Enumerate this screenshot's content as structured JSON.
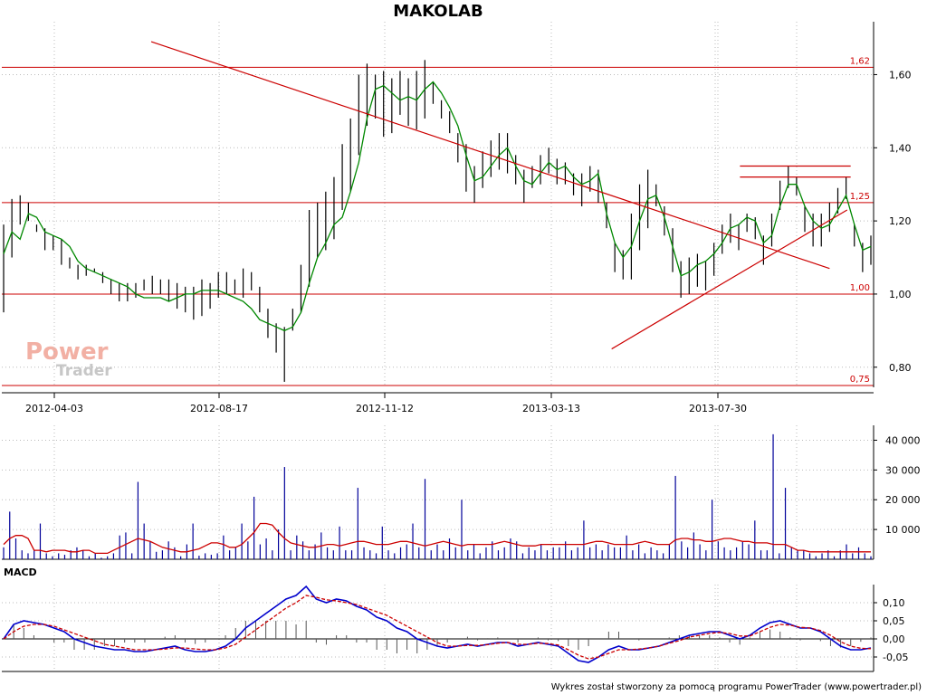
{
  "chart_data": [
    {
      "type": "candlestick",
      "title": "MAKOLAB",
      "x_tick_labels": [
        "2012-04-03",
        "2012-08-17",
        "2012-11-12",
        "2013-03-13",
        "2013-07-30"
      ],
      "y_ticks": [
        0.8,
        1.0,
        1.2,
        1.4,
        1.6
      ],
      "y_tick_labels": [
        "0,80",
        "1,00",
        "1,20",
        "1,40",
        "1,60"
      ],
      "ylim": [
        0.745,
        1.71
      ],
      "grid": true,
      "levels": [
        {
          "value": 1.62,
          "label": "1,62"
        },
        {
          "value": 1.25,
          "label": "1,25"
        },
        {
          "value": 1.0,
          "label": "1,00"
        },
        {
          "value": 0.75,
          "label": "0,75"
        }
      ],
      "trendlines": [
        {
          "from": [
            84,
            1.69
          ],
          "to": [
            470,
            1.07
          ]
        },
        {
          "from": [
            346,
            0.85
          ],
          "to": [
            480,
            1.23
          ]
        }
      ],
      "channel_lines": [
        {
          "from": [
            419,
            1.35
          ],
          "to": [
            482,
            1.35
          ]
        },
        {
          "from": [
            419,
            1.32
          ],
          "to": [
            482,
            1.32
          ]
        }
      ],
      "price_bars": {
        "lows": [
          0.95,
          1.1,
          1.19,
          1.2,
          1.17,
          1.12,
          1.12,
          1.08,
          1.07,
          1.04,
          1.05,
          1.06,
          1.03,
          1.0,
          0.98,
          0.98,
          0.99,
          1.01,
          1.0,
          1.0,
          0.98,
          0.96,
          0.95,
          0.93,
          0.94,
          0.96,
          0.99,
          1.0,
          1.0,
          0.99,
          1.01,
          0.95,
          0.88,
          0.84,
          0.76,
          0.9,
          0.95,
          1.02,
          1.1,
          1.12,
          1.15,
          1.23,
          1.28,
          1.38,
          1.46,
          1.48,
          1.43,
          1.44,
          1.49,
          1.46,
          1.45,
          1.48,
          1.52,
          1.48,
          1.44,
          1.36,
          1.28,
          1.25,
          1.29,
          1.32,
          1.34,
          1.33,
          1.3,
          1.25,
          1.29,
          1.3,
          1.33,
          1.3,
          1.3,
          1.27,
          1.24,
          1.28,
          1.25,
          1.18,
          1.06,
          1.04,
          1.04,
          1.12,
          1.18,
          1.24,
          1.16,
          1.06,
          0.99,
          1.0,
          1.02,
          1.01,
          1.05,
          1.11,
          1.14,
          1.12,
          1.17,
          1.15,
          1.08,
          1.13,
          1.23,
          1.29,
          1.27,
          1.17,
          1.13,
          1.13,
          1.17,
          1.22,
          1.26,
          1.13,
          1.06,
          1.08
        ],
        "highs": [
          1.19,
          1.26,
          1.27,
          1.25,
          1.19,
          1.18,
          1.16,
          1.15,
          1.1,
          1.08,
          1.08,
          1.07,
          1.06,
          1.04,
          1.03,
          1.03,
          1.03,
          1.04,
          1.05,
          1.04,
          1.04,
          1.03,
          1.02,
          1.02,
          1.04,
          1.03,
          1.06,
          1.06,
          1.04,
          1.07,
          1.06,
          1.02,
          0.96,
          0.92,
          0.91,
          0.96,
          1.08,
          1.23,
          1.25,
          1.28,
          1.32,
          1.41,
          1.48,
          1.6,
          1.63,
          1.6,
          1.61,
          1.59,
          1.61,
          1.59,
          1.61,
          1.64,
          1.58,
          1.53,
          1.5,
          1.44,
          1.41,
          1.35,
          1.39,
          1.42,
          1.44,
          1.44,
          1.38,
          1.34,
          1.35,
          1.38,
          1.4,
          1.37,
          1.36,
          1.33,
          1.33,
          1.35,
          1.34,
          1.25,
          1.14,
          1.12,
          1.22,
          1.3,
          1.34,
          1.3,
          1.24,
          1.18,
          1.09,
          1.1,
          1.11,
          1.09,
          1.14,
          1.19,
          1.22,
          1.19,
          1.22,
          1.21,
          1.16,
          1.22,
          1.31,
          1.35,
          1.32,
          1.24,
          1.22,
          1.22,
          1.25,
          1.29,
          1.32,
          1.19,
          1.14,
          1.16
        ]
      },
      "series": [
        {
          "values": [
            1.11,
            1.17,
            1.15,
            1.22,
            1.21,
            1.17,
            1.16,
            1.15,
            1.13,
            1.09,
            1.07,
            1.06,
            1.05,
            1.04,
            1.03,
            1.02,
            1.0,
            0.99,
            0.99,
            0.99,
            0.98,
            0.99,
            1.0,
            1.0,
            1.01,
            1.01,
            1.01,
            1.0,
            0.99,
            0.98,
            0.96,
            0.93,
            0.92,
            0.91,
            0.9,
            0.91,
            0.95,
            1.03,
            1.1,
            1.14,
            1.19,
            1.21,
            1.28,
            1.36,
            1.48,
            1.56,
            1.57,
            1.55,
            1.53,
            1.54,
            1.53,
            1.56,
            1.58,
            1.55,
            1.51,
            1.46,
            1.38,
            1.31,
            1.32,
            1.35,
            1.38,
            1.4,
            1.35,
            1.31,
            1.3,
            1.33,
            1.36,
            1.34,
            1.35,
            1.32,
            1.3,
            1.31,
            1.33,
            1.22,
            1.14,
            1.1,
            1.13,
            1.2,
            1.26,
            1.27,
            1.21,
            1.13,
            1.05,
            1.06,
            1.08,
            1.09,
            1.11,
            1.14,
            1.18,
            1.19,
            1.21,
            1.2,
            1.14,
            1.16,
            1.24,
            1.3,
            1.3,
            1.24,
            1.2,
            1.18,
            1.19,
            1.23,
            1.27,
            1.19,
            1.12,
            1.13
          ]
        }
      ]
    },
    {
      "type": "bar",
      "y_ticks": [
        10000,
        20000,
        30000,
        40000
      ],
      "y_tick_labels": [
        "10 000",
        "20 000",
        "30 000",
        "40 000"
      ],
      "ylim": [
        0,
        45000
      ],
      "grid": true,
      "series": [
        {
          "values": [
            4000,
            16000,
            7000,
            3000,
            2000,
            3000,
            12000,
            2000,
            1000,
            2000,
            1500,
            3000,
            4000,
            3000,
            1000,
            2000,
            500,
            1000,
            2000,
            8000,
            9000,
            2000,
            26000,
            12000,
            6000,
            2500,
            3000,
            6000,
            4000,
            1000,
            5000,
            12000,
            1200,
            2000,
            1500,
            2000,
            8000,
            3000,
            4000,
            12000,
            6000,
            21000,
            5000,
            7000,
            3000,
            10000,
            31000,
            3000,
            8000,
            6000,
            3000,
            5000,
            9000,
            4000,
            3000,
            11000,
            3000,
            3000,
            24000,
            4000,
            3000,
            2000,
            11000,
            3000,
            2000,
            4000,
            5000,
            12000,
            4000,
            27000,
            3000,
            5000,
            3000,
            7000,
            4000,
            20000,
            3000,
            5000,
            2000,
            4000,
            6000,
            3000,
            4000,
            7000,
            6000,
            2000,
            4000,
            3000,
            5000,
            3000,
            4000,
            4000,
            6000,
            3000,
            4000,
            13000,
            4000,
            5000,
            3000,
            5000,
            4000,
            4000,
            8000,
            3000,
            5000,
            2000,
            4000,
            3000,
            2000,
            5000,
            28000,
            6000,
            4000,
            9000,
            5000,
            3000,
            20000,
            6000,
            4000,
            3000,
            4000,
            6000,
            5000,
            13000,
            3000,
            3000,
            42000,
            2000,
            24000,
            4000,
            3000,
            3000,
            2000,
            1000,
            2000,
            3000,
            1000,
            3000,
            5000,
            2000,
            4000,
            2000,
            1000
          ]
        },
        {
          "values": [
            5000,
            7000,
            8000,
            8000,
            7000,
            3000,
            3000,
            2500,
            3000,
            3000,
            3000,
            2500,
            2500,
            3000,
            3000,
            2000,
            2000,
            2000,
            3000,
            4000,
            5000,
            6000,
            7000,
            6500,
            6000,
            5000,
            4000,
            3500,
            3000,
            2500,
            2500,
            3000,
            3500,
            4500,
            5500,
            5500,
            5000,
            4000,
            4000,
            5000,
            7000,
            9000,
            12000,
            12000,
            11500,
            9000,
            7000,
            5500,
            5000,
            4500,
            4000,
            4000,
            4500,
            5000,
            5000,
            4500,
            5000,
            5500,
            6000,
            6000,
            5500,
            5000,
            5000,
            5000,
            5500,
            6000,
            6000,
            5500,
            5000,
            4500,
            5000,
            5500,
            6000,
            5500,
            5000,
            4500,
            5000,
            5000,
            5000,
            5000,
            5000,
            5500,
            6000,
            5500,
            5000,
            4500,
            4500,
            4500,
            5000,
            5000,
            5000,
            5000,
            5000,
            5000,
            5000,
            5000,
            5500,
            6000,
            6000,
            5500,
            5000,
            5000,
            5000,
            5000,
            5500,
            6000,
            5500,
            5000,
            5000,
            5000,
            6500,
            7000,
            7000,
            6500,
            6500,
            6000,
            6000,
            6500,
            7000,
            7000,
            6500,
            6000,
            6000,
            5500,
            5500,
            5500,
            5000,
            5000,
            5000,
            4000,
            3000,
            3000,
            2500,
            2500,
            2500,
            2500,
            2500,
            2500,
            2500,
            2500,
            2500,
            2500,
            2500
          ]
        }
      ]
    },
    {
      "type": "line",
      "title": "MACD",
      "y_ticks": [
        -0.05,
        0.0,
        0.05,
        0.1
      ],
      "y_tick_labels": [
        "-0,05",
        "0,00",
        "0,05",
        "0,10"
      ],
      "ylim": [
        -0.09,
        0.15
      ],
      "grid": true,
      "series": [
        {
          "values": [
            0.0,
            0.04,
            0.05,
            0.045,
            0.04,
            0.03,
            0.02,
            0.0,
            -0.01,
            -0.02,
            -0.025,
            -0.03,
            -0.03,
            -0.035,
            -0.035,
            -0.03,
            -0.025,
            -0.02,
            -0.03,
            -0.035,
            -0.035,
            -0.03,
            -0.02,
            0.0,
            0.03,
            0.05,
            0.07,
            0.09,
            0.11,
            0.12,
            0.145,
            0.11,
            0.1,
            0.11,
            0.105,
            0.09,
            0.08,
            0.06,
            0.05,
            0.03,
            0.02,
            0.0,
            -0.01,
            -0.02,
            -0.025,
            -0.02,
            -0.015,
            -0.02,
            -0.015,
            -0.01,
            -0.01,
            -0.02,
            -0.015,
            -0.01,
            -0.015,
            -0.02,
            -0.04,
            -0.06,
            -0.065,
            -0.05,
            -0.03,
            -0.02,
            -0.03,
            -0.03,
            -0.025,
            -0.02,
            -0.01,
            0.0,
            0.01,
            0.015,
            0.02,
            0.02,
            0.01,
            0.0,
            0.01,
            0.03,
            0.045,
            0.05,
            0.04,
            0.03,
            0.03,
            0.02,
            0.0,
            -0.02,
            -0.03,
            -0.03,
            -0.025
          ]
        },
        {
          "values": [
            0.0,
            0.02,
            0.035,
            0.04,
            0.04,
            0.035,
            0.025,
            0.015,
            0.005,
            -0.005,
            -0.015,
            -0.02,
            -0.025,
            -0.03,
            -0.03,
            -0.03,
            -0.028,
            -0.025,
            -0.025,
            -0.028,
            -0.03,
            -0.03,
            -0.025,
            -0.015,
            0.005,
            0.025,
            0.045,
            0.065,
            0.085,
            0.1,
            0.12,
            0.115,
            0.108,
            0.105,
            0.1,
            0.095,
            0.085,
            0.075,
            0.065,
            0.05,
            0.035,
            0.02,
            0.005,
            -0.01,
            -0.02,
            -0.02,
            -0.018,
            -0.018,
            -0.016,
            -0.012,
            -0.01,
            -0.015,
            -0.015,
            -0.012,
            -0.013,
            -0.017,
            -0.03,
            -0.045,
            -0.055,
            -0.05,
            -0.04,
            -0.03,
            -0.03,
            -0.028,
            -0.025,
            -0.02,
            -0.012,
            -0.005,
            0.005,
            0.01,
            0.015,
            0.018,
            0.015,
            0.008,
            0.008,
            0.02,
            0.032,
            0.04,
            0.038,
            0.032,
            0.03,
            0.023,
            0.01,
            -0.008,
            -0.02,
            -0.026,
            -0.027
          ]
        }
      ]
    }
  ],
  "footer": "Wykres został stworzony za pomocą programu PowerTrader (www.powertrader.pl)",
  "watermark": {
    "line1": "Power",
    "line2": "Trader"
  },
  "colors": {
    "price_bars": "#000000",
    "moving_average": "#008800",
    "reference_lines": "#cc0000",
    "volume_bars": "#000099",
    "volume_average": "#cc0000",
    "macd_line": "#0000cc",
    "signal_line": "#cc0000",
    "grid": "#bbbbbb"
  }
}
